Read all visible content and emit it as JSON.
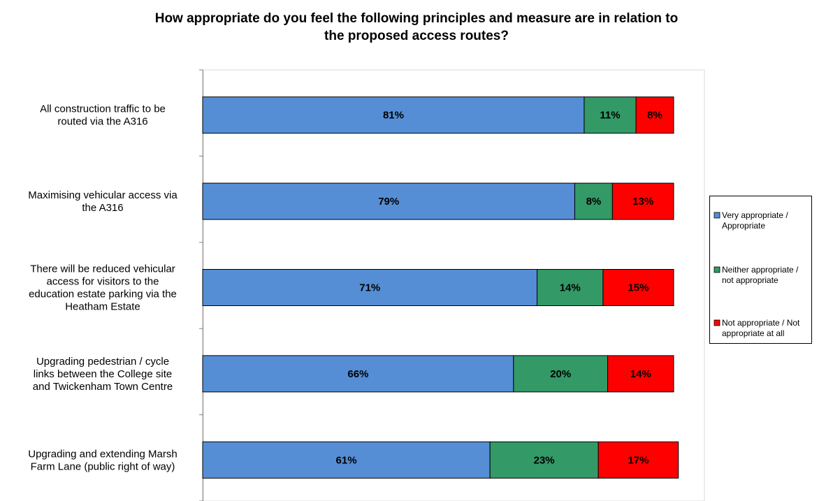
{
  "chart_data": {
    "type": "bar",
    "orientation": "horizontal",
    "stacked": true,
    "title_lines": [
      "How appropriate do you feel the following principles and measure are in relation to",
      "the proposed access routes?"
    ],
    "categories": [
      [
        "All construction traffic to be",
        "routed via the A316"
      ],
      [
        "Maximising vehicular access via",
        "the A316"
      ],
      [
        "There will be reduced vehicular",
        "access for visitors to the",
        "education estate parking via the",
        "Heatham Estate"
      ],
      [
        "Upgrading pedestrian / cycle",
        "links between the College site",
        "and Twickenham Town Centre"
      ],
      [
        "Upgrading and extending Marsh",
        "Farm Lane (public right of way)"
      ]
    ],
    "series": [
      {
        "name_lines": [
          "Very appropriate /",
          "Appropriate"
        ],
        "color": "#558ED5",
        "values": [
          81,
          79,
          71,
          66,
          61
        ],
        "labels": [
          "81%",
          "79%",
          "71%",
          "66%",
          "61%"
        ]
      },
      {
        "name_lines": [
          "Neither appropriate /",
          "not appropriate"
        ],
        "color": "#339966",
        "values": [
          11,
          8,
          14,
          20,
          23
        ],
        "labels": [
          "11%",
          "8%",
          "14%",
          "20%",
          "23%"
        ]
      },
      {
        "name_lines": [
          "Not appropriate / Not",
          "appropriate at all"
        ],
        "color": "#FF0000",
        "values": [
          8,
          13,
          15,
          14,
          17
        ],
        "labels": [
          "8%",
          "13%",
          "15%",
          "14%",
          "17%"
        ]
      }
    ],
    "xlim": [
      0,
      100
    ],
    "grid": false,
    "legend_position": "right"
  }
}
